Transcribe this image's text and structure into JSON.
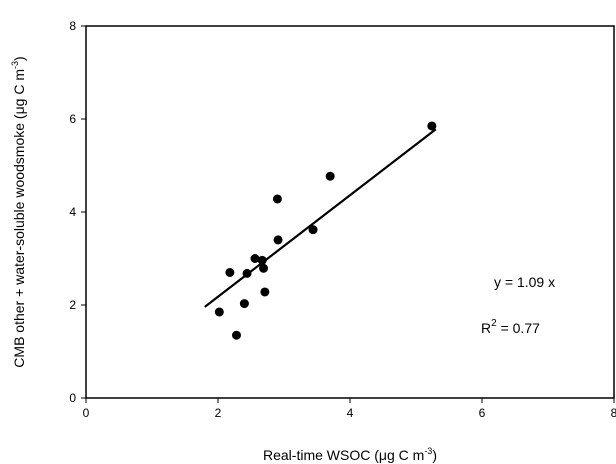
{
  "chart_data": {
    "type": "scatter",
    "x_ticks": [
      "0",
      "2",
      "4",
      "6",
      "8"
    ],
    "y_ticks": [
      "0",
      "2",
      "4",
      "6",
      "8"
    ],
    "xlim": [
      0,
      8
    ],
    "ylim": [
      0,
      8
    ],
    "grid": false,
    "xlabel": {
      "main": "Real-time WSOC (μg C m",
      "sup": "-3",
      "tail": ")"
    },
    "ylabel": {
      "main": "CMB other + water-soluble woodsmoke (μg C m",
      "sup": "-3",
      "tail": ")"
    },
    "points": [
      {
        "x": 2.02,
        "y": 1.85
      },
      {
        "x": 2.18,
        "y": 2.7
      },
      {
        "x": 2.28,
        "y": 1.35
      },
      {
        "x": 2.4,
        "y": 2.03
      },
      {
        "x": 2.44,
        "y": 2.68
      },
      {
        "x": 2.56,
        "y": 3.0
      },
      {
        "x": 2.67,
        "y": 2.96
      },
      {
        "x": 2.69,
        "y": 2.79
      },
      {
        "x": 2.71,
        "y": 2.28
      },
      {
        "x": 2.9,
        "y": 4.28
      },
      {
        "x": 2.91,
        "y": 3.4
      },
      {
        "x": 3.44,
        "y": 3.62
      },
      {
        "x": 3.7,
        "y": 4.77
      },
      {
        "x": 5.24,
        "y": 5.85
      }
    ],
    "fit_line": {
      "x": [
        1.8,
        5.3
      ],
      "y": [
        1.96,
        5.78
      ]
    },
    "annotations": {
      "equation": "y = 1.09 x",
      "r2_label": "R",
      "r2_sup": "2",
      "r2_value": " = 0.77"
    }
  }
}
